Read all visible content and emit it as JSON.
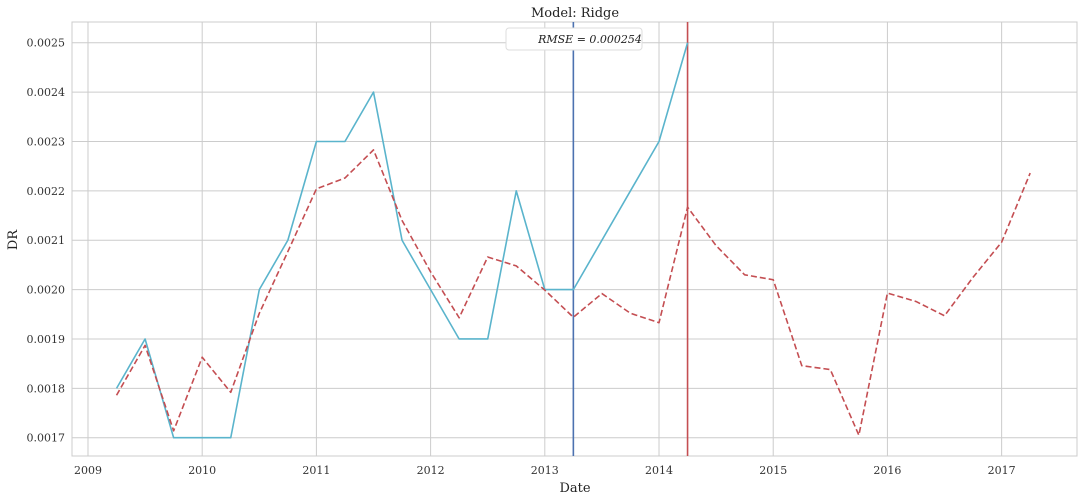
{
  "chart_data": {
    "type": "line",
    "title": "Model: Ridge",
    "xlabel": "Date",
    "ylabel": "DR",
    "x_ticks": [
      "2009",
      "2010",
      "2011",
      "2012",
      "2013",
      "2014",
      "2015",
      "2016",
      "2017"
    ],
    "y_ticks": [
      "0.0017",
      "0.0018",
      "0.0019",
      "0.0020",
      "0.0021",
      "0.0022",
      "0.0023",
      "0.0024",
      "0.0025"
    ],
    "xlim": [
      2008.86,
      2017.66
    ],
    "ylim": [
      0.001663,
      0.002542
    ],
    "grid": true,
    "legend": {
      "placement": "top-center",
      "text": "RMSE = 0.000254"
    },
    "series": [
      {
        "style": "solid",
        "color": "#5ab4cc",
        "x": [
          2009.25,
          2009.5,
          2009.75,
          2010.0,
          2010.25,
          2010.5,
          2010.75,
          2011.0,
          2011.25,
          2011.5,
          2011.75,
          2012.0,
          2012.25,
          2012.5,
          2012.75,
          2013.0,
          2013.25,
          2014.0,
          2014.25
        ],
        "values": [
          0.0018,
          0.0019,
          0.0017,
          0.0017,
          0.0017,
          0.002,
          0.0021,
          0.0023,
          0.0023,
          0.0024,
          0.0021,
          0.002,
          0.0019,
          0.0019,
          0.0022,
          0.002,
          0.002,
          0.0023,
          0.0025
        ]
      },
      {
        "style": "dashed",
        "color": "#c44e52",
        "x": [
          2009.25,
          2009.5,
          2009.75,
          2010.0,
          2010.25,
          2010.5,
          2010.75,
          2011.0,
          2011.25,
          2011.5,
          2011.75,
          2012.0,
          2012.25,
          2012.5,
          2012.75,
          2013.0,
          2013.25,
          2013.5,
          2013.75,
          2014.0,
          2014.25,
          2014.5,
          2014.75,
          2015.0,
          2015.25,
          2015.5,
          2015.75,
          2016.0,
          2016.25,
          2016.5,
          2016.75,
          2017.0,
          2017.25
        ],
        "values": [
          0.001786,
          0.001887,
          0.001714,
          0.001863,
          0.001792,
          0.001952,
          0.002077,
          0.002204,
          0.002226,
          0.002283,
          0.00214,
          0.002036,
          0.001943,
          0.002066,
          0.002048,
          0.001999,
          0.001944,
          0.001992,
          0.001952,
          0.001933,
          0.002167,
          0.002089,
          0.00203,
          0.00202,
          0.001846,
          0.001838,
          0.001705,
          0.001993,
          0.001976,
          0.001947,
          0.002025,
          0.002096,
          0.002236
        ]
      }
    ],
    "vlines": [
      {
        "x": 2013.25,
        "color": "#4c72b0"
      },
      {
        "x": 2014.25,
        "color": "#c44e52"
      }
    ]
  }
}
